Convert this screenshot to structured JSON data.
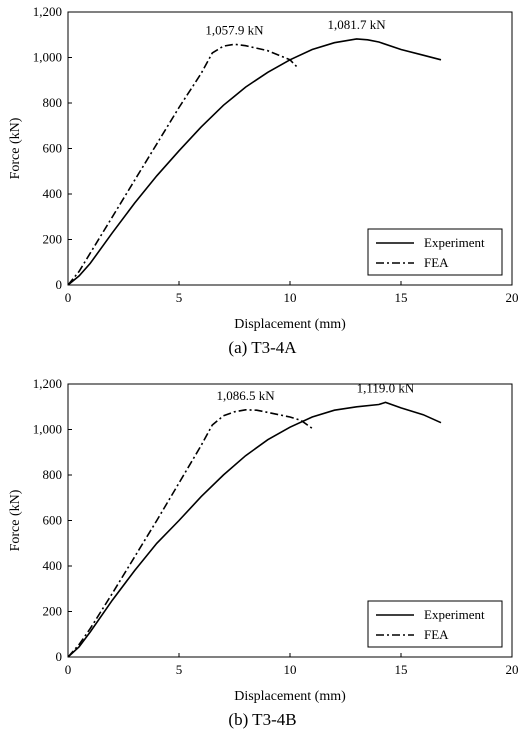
{
  "chart_data": [
    {
      "type": "line",
      "caption": "(a) T3-4A",
      "xlabel": "Displacement (mm)",
      "ylabel": "Force (kN)",
      "xlim": [
        0,
        20
      ],
      "ylim": [
        0,
        1200
      ],
      "xticks": [
        "0",
        "5",
        "10",
        "15",
        "20"
      ],
      "yticks": [
        "0",
        "200",
        "400",
        "600",
        "800",
        "1,000",
        "1,200"
      ],
      "legend_position": "bottom-right",
      "series": [
        {
          "name": "Experiment",
          "style": "solid",
          "x": [
            0,
            0.5,
            1,
            2,
            3,
            4,
            5,
            6,
            7,
            7.5,
            8,
            9,
            10,
            11,
            12,
            13,
            13.5,
            14,
            15,
            16,
            16.8
          ],
          "y": [
            0,
            40,
            95,
            230,
            360,
            480,
            590,
            695,
            790,
            830,
            870,
            935,
            990,
            1035,
            1065,
            1081.7,
            1078,
            1068,
            1035,
            1010,
            990
          ]
        },
        {
          "name": "FEA",
          "style": "dashdot",
          "x": [
            0,
            0.5,
            1,
            2,
            3,
            4,
            5,
            6,
            6.5,
            7,
            7.5,
            8,
            9,
            10,
            10.3
          ],
          "y": [
            0,
            60,
            140,
            300,
            460,
            620,
            780,
            930,
            1020,
            1050,
            1057.9,
            1052,
            1030,
            990,
            960
          ]
        }
      ],
      "annotations": [
        {
          "text": "1,057.9 kN",
          "x": 7.5,
          "y": 1057.9
        },
        {
          "text": "1,081.7 kN",
          "x": 13.0,
          "y": 1081.7
        }
      ]
    },
    {
      "type": "line",
      "caption": "(b) T3-4B",
      "xlabel": "Displacement (mm)",
      "ylabel": "Force (kN)",
      "xlim": [
        0,
        20
      ],
      "ylim": [
        0,
        1200
      ],
      "xticks": [
        "0",
        "5",
        "10",
        "15",
        "20"
      ],
      "yticks": [
        "0",
        "200",
        "400",
        "600",
        "800",
        "1,000",
        "1,200"
      ],
      "legend_position": "bottom-right",
      "series": [
        {
          "name": "Experiment",
          "style": "solid",
          "x": [
            0,
            0.5,
            1,
            2,
            3,
            4,
            5,
            6,
            7,
            8,
            9,
            10,
            11,
            12,
            13,
            14,
            14.3,
            15,
            16,
            16.8
          ],
          "y": [
            0,
            45,
            110,
            250,
            380,
            500,
            600,
            705,
            800,
            885,
            955,
            1010,
            1055,
            1085,
            1100,
            1110,
            1119.0,
            1095,
            1065,
            1030
          ]
        },
        {
          "name": "FEA",
          "style": "dashdot",
          "x": [
            0,
            0.5,
            1,
            2,
            3,
            4,
            5,
            6,
            6.5,
            7,
            7.5,
            8,
            8.5,
            9,
            10,
            10.5,
            11
          ],
          "y": [
            0,
            55,
            125,
            280,
            440,
            600,
            765,
            930,
            1020,
            1060,
            1078,
            1086.5,
            1085,
            1075,
            1055,
            1040,
            1005
          ]
        }
      ],
      "annotations": [
        {
          "text": "1,086.5 kN",
          "x": 8.0,
          "y": 1086.5
        },
        {
          "text": "1,119.0 kN",
          "x": 14.3,
          "y": 1119.0
        }
      ]
    }
  ]
}
